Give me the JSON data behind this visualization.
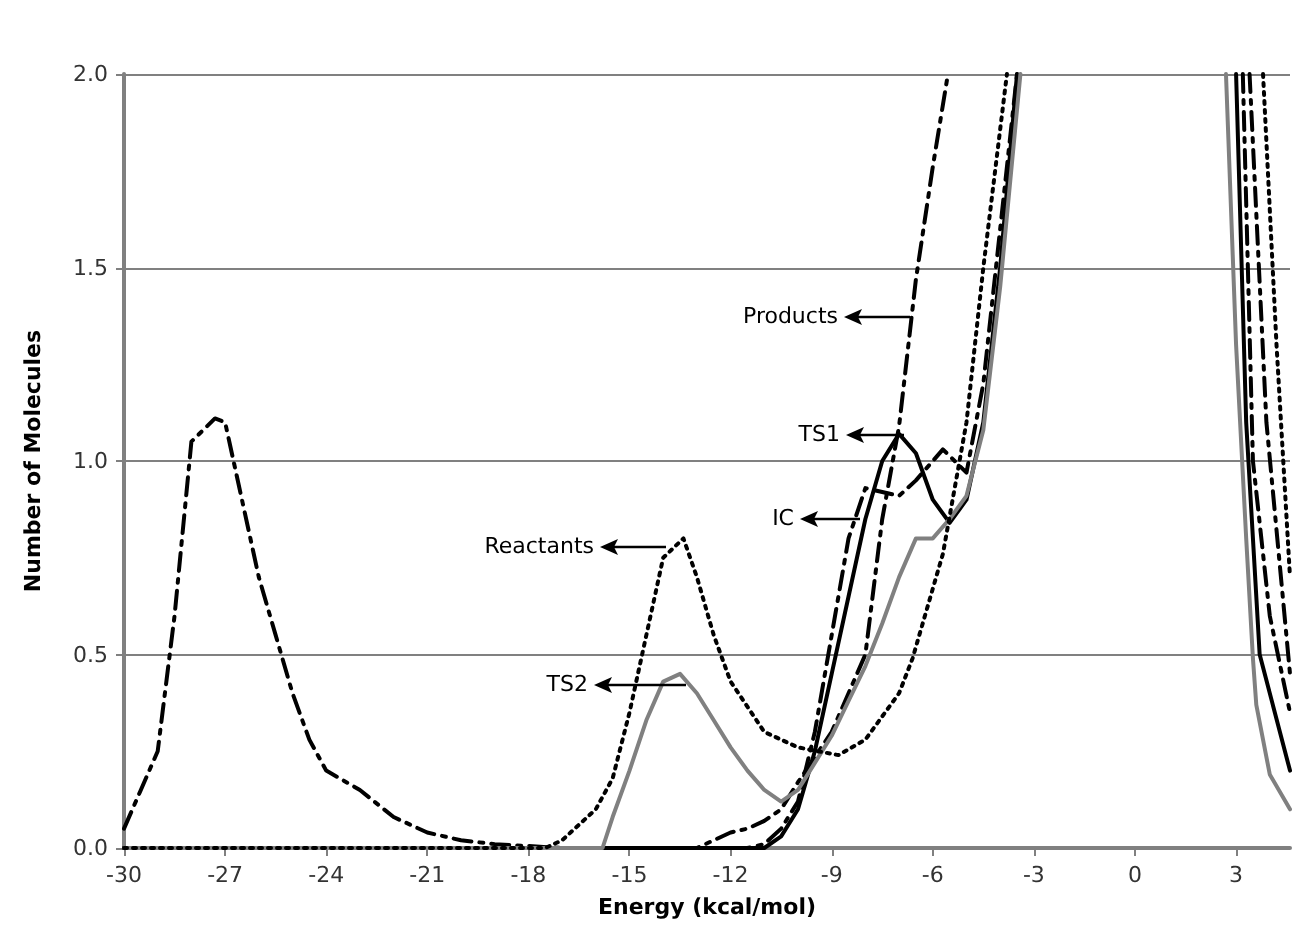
{
  "chart_data": {
    "type": "line",
    "xlabel": "Energy (kcal/mol)",
    "ylabel": "Number of Molecules",
    "xlim": [
      -30,
      4.6
    ],
    "xticks": [
      -30,
      -27,
      -24,
      -21,
      -18,
      -15,
      -12,
      -9,
      -6,
      -3,
      0,
      3
    ],
    "ylim": [
      0,
      2
    ],
    "yticks": [
      {
        "value": 0,
        "label": "0.0"
      },
      0.5,
      {
        "value": 1,
        "label": "1.0"
      },
      1.5,
      {
        "value": 2,
        "label": "2.0"
      }
    ],
    "grid": "y",
    "marker": "none",
    "series": [
      {
        "color": "#000000",
        "line_style": "dashed",
        "x": [
          -30,
          -29.5,
          -29,
          -28.5,
          -28,
          -27.3,
          -27,
          -26.5,
          -26,
          -25.5,
          -25,
          -24.5,
          -24,
          -23,
          -22,
          -21,
          -20,
          -19,
          -18,
          -17,
          -16,
          -15,
          -14,
          -13,
          -12.5,
          -12,
          -11.5,
          -11,
          -10.5,
          -10,
          -9,
          -8,
          -7.5,
          -7,
          -6.5,
          -6,
          -5.55,
          0,
          3.2,
          3.5,
          4,
          4.6
        ],
        "values": [
          0.05,
          0.15,
          0.25,
          0.6,
          1.05,
          1.11,
          1.1,
          0.9,
          0.7,
          0.55,
          0.4,
          0.28,
          0.2,
          0.15,
          0.08,
          0.04,
          0.02,
          0.01,
          0.005,
          0,
          0,
          0,
          0,
          0,
          0.02,
          0.04,
          0.05,
          0.07,
          0.1,
          0.17,
          0.3,
          0.5,
          0.85,
          1.09,
          1.47,
          1.76,
          2,
          null,
          2,
          1,
          0.6,
          0.35
        ]
      },
      {
        "color": "#000000",
        "line_style": "solid",
        "x": [
          -30,
          -11,
          -10.5,
          -10,
          -9.5,
          -9,
          -8.5,
          -8,
          -7.5,
          -7,
          -6.5,
          -6,
          -5.5,
          -5,
          -4.5,
          -4,
          -3.5,
          0,
          3,
          3.3,
          3.7,
          4.6
        ],
        "values": [
          0,
          0,
          0.03,
          0.1,
          0.25,
          0.45,
          0.65,
          0.85,
          1,
          1.07,
          1.02,
          0.9,
          0.84,
          0.9,
          1.1,
          1.5,
          2,
          null,
          2,
          1.1,
          0.5,
          0.2
        ]
      },
      {
        "color": "#000000",
        "line_style": "dashed",
        "x": [
          -30,
          -11.5,
          -11,
          -10.5,
          -10,
          -9.5,
          -9,
          -8.5,
          -8,
          -7.5,
          -7,
          -6.5,
          -6,
          -5.7,
          -5,
          -4.5,
          -4,
          -3.5,
          0,
          3.4,
          3.9,
          4.6
        ],
        "values": [
          0,
          0,
          0.01,
          0.05,
          0.12,
          0.3,
          0.55,
          0.8,
          0.93,
          0.92,
          0.91,
          0.95,
          1,
          1.03,
          0.97,
          1.2,
          1.6,
          2,
          null,
          2,
          1.1,
          0.45
        ]
      },
      {
        "color": "#000000",
        "line_style": "dotted",
        "x": [
          -30,
          -17.5,
          -17,
          -16.5,
          -16,
          -15.5,
          -15,
          -14.5,
          -14,
          -13.4,
          -13,
          -12.5,
          -12,
          -11,
          -10,
          -8.8,
          -8,
          -7,
          -6.6,
          -5.7,
          -5,
          -4.5,
          -3.8,
          0,
          3.8,
          4.2,
          4.6
        ],
        "values": [
          0,
          0,
          0.02,
          0.06,
          0.1,
          0.18,
          0.35,
          0.55,
          0.75,
          0.8,
          0.7,
          0.55,
          0.43,
          0.3,
          0.26,
          0.24,
          0.28,
          0.4,
          0.49,
          0.76,
          1.1,
          1.5,
          2,
          null,
          2,
          1.3,
          0.7
        ]
      },
      {
        "color": "#808080",
        "line_style": "solid",
        "x": [
          -30,
          -15.8,
          -15.5,
          -15,
          -14.5,
          -14,
          -13.5,
          -13,
          -12.5,
          -12,
          -11.5,
          -11,
          -10.5,
          -10,
          -9.5,
          -9,
          -8.5,
          -8,
          -7.5,
          -7,
          -6.5,
          -6,
          -5.5,
          -5,
          -4.5,
          -4,
          -3.4,
          0,
          2.7,
          3,
          3.3,
          3.5,
          3.6,
          4,
          4.6
        ],
        "values": [
          0,
          0,
          0.08,
          0.2,
          0.33,
          0.43,
          0.45,
          0.4,
          0.33,
          0.26,
          0.2,
          0.15,
          0.12,
          0.15,
          0.22,
          0.29,
          0.38,
          0.47,
          0.58,
          0.7,
          0.8,
          0.8,
          0.85,
          0.91,
          1.08,
          1.45,
          2,
          null,
          2,
          1.3,
          0.8,
          0.49,
          0.37,
          0.19,
          0.1
        ]
      }
    ],
    "annotations": [
      "Products",
      "TS1",
      "IC",
      "Reactants",
      "TS2"
    ]
  }
}
